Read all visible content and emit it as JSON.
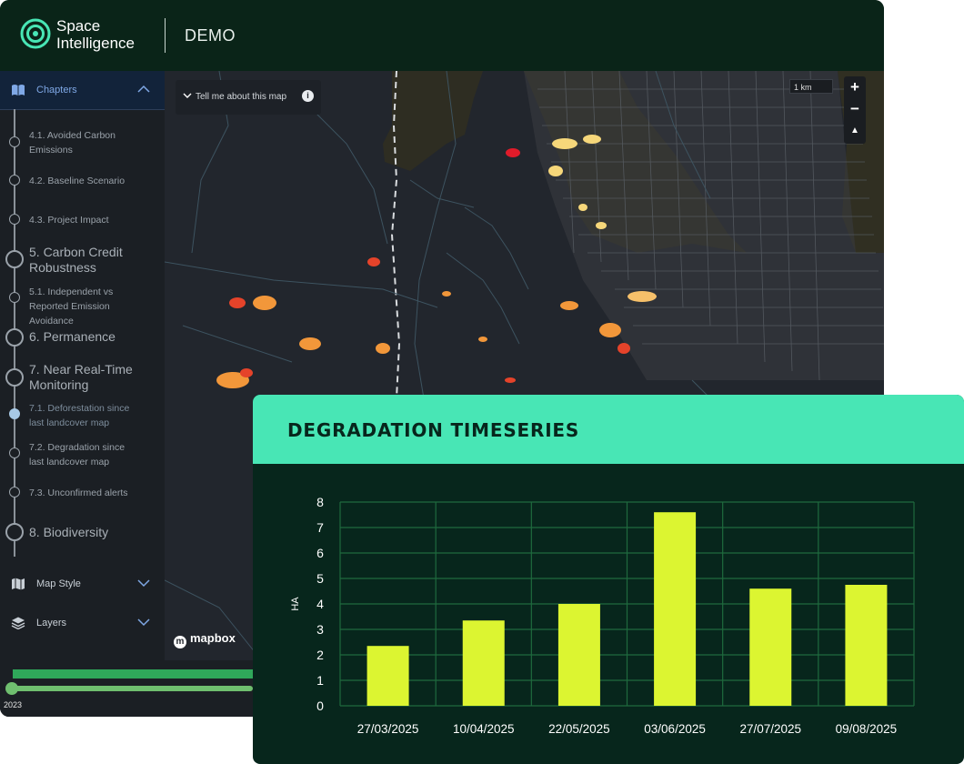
{
  "header": {
    "brand_line1": "Space",
    "brand_line2": "Intelligence",
    "demo_label": "DEMO"
  },
  "sidebar": {
    "chapters_label": "Chapters",
    "items": [
      {
        "label": "4.1. Avoided Carbon Emissions"
      },
      {
        "label": "4.2. Baseline Scenario"
      },
      {
        "label": "4.3. Project Impact"
      },
      {
        "label": "5. Carbon Credit Robustness"
      },
      {
        "label": "5.1. Independent vs Reported Emission Avoidance"
      },
      {
        "label": "6. Permanence"
      },
      {
        "label": "7. Near Real-Time Monitoring"
      },
      {
        "label": "7.1. Deforestation since last landcover map"
      },
      {
        "label": "7.2. Degradation since last landcover map"
      },
      {
        "label": "7.3. Unconfirmed alerts"
      },
      {
        "label": "8. Biodiversity"
      }
    ],
    "map_style_label": "Map Style",
    "layers_label": "Layers"
  },
  "map": {
    "tell_me_label": "Tell me about this map",
    "scale_label": "1 km",
    "attribution": "mapbox"
  },
  "timeline": {
    "year": "2023"
  },
  "card": {
    "title": "DEGRADATION TIMESERIES"
  },
  "chart_data": {
    "type": "bar",
    "categories": [
      "27/03/2025",
      "10/04/2025",
      "22/05/2025",
      "03/06/2025",
      "27/07/2025",
      "09/08/2025"
    ],
    "values": [
      2.35,
      3.35,
      4.0,
      7.6,
      4.6,
      4.75
    ],
    "ylabel": "HA",
    "ylim": [
      0,
      8
    ],
    "yticks": [
      0,
      1,
      2,
      3,
      4,
      5,
      6,
      7,
      8
    ],
    "bar_color": "#dcf531",
    "grid_color": "#1f6a3e",
    "grid": true
  },
  "colors": {
    "accent": "#48e6b5",
    "card_bg": "#07261c",
    "header_bg": "#0a2418"
  }
}
